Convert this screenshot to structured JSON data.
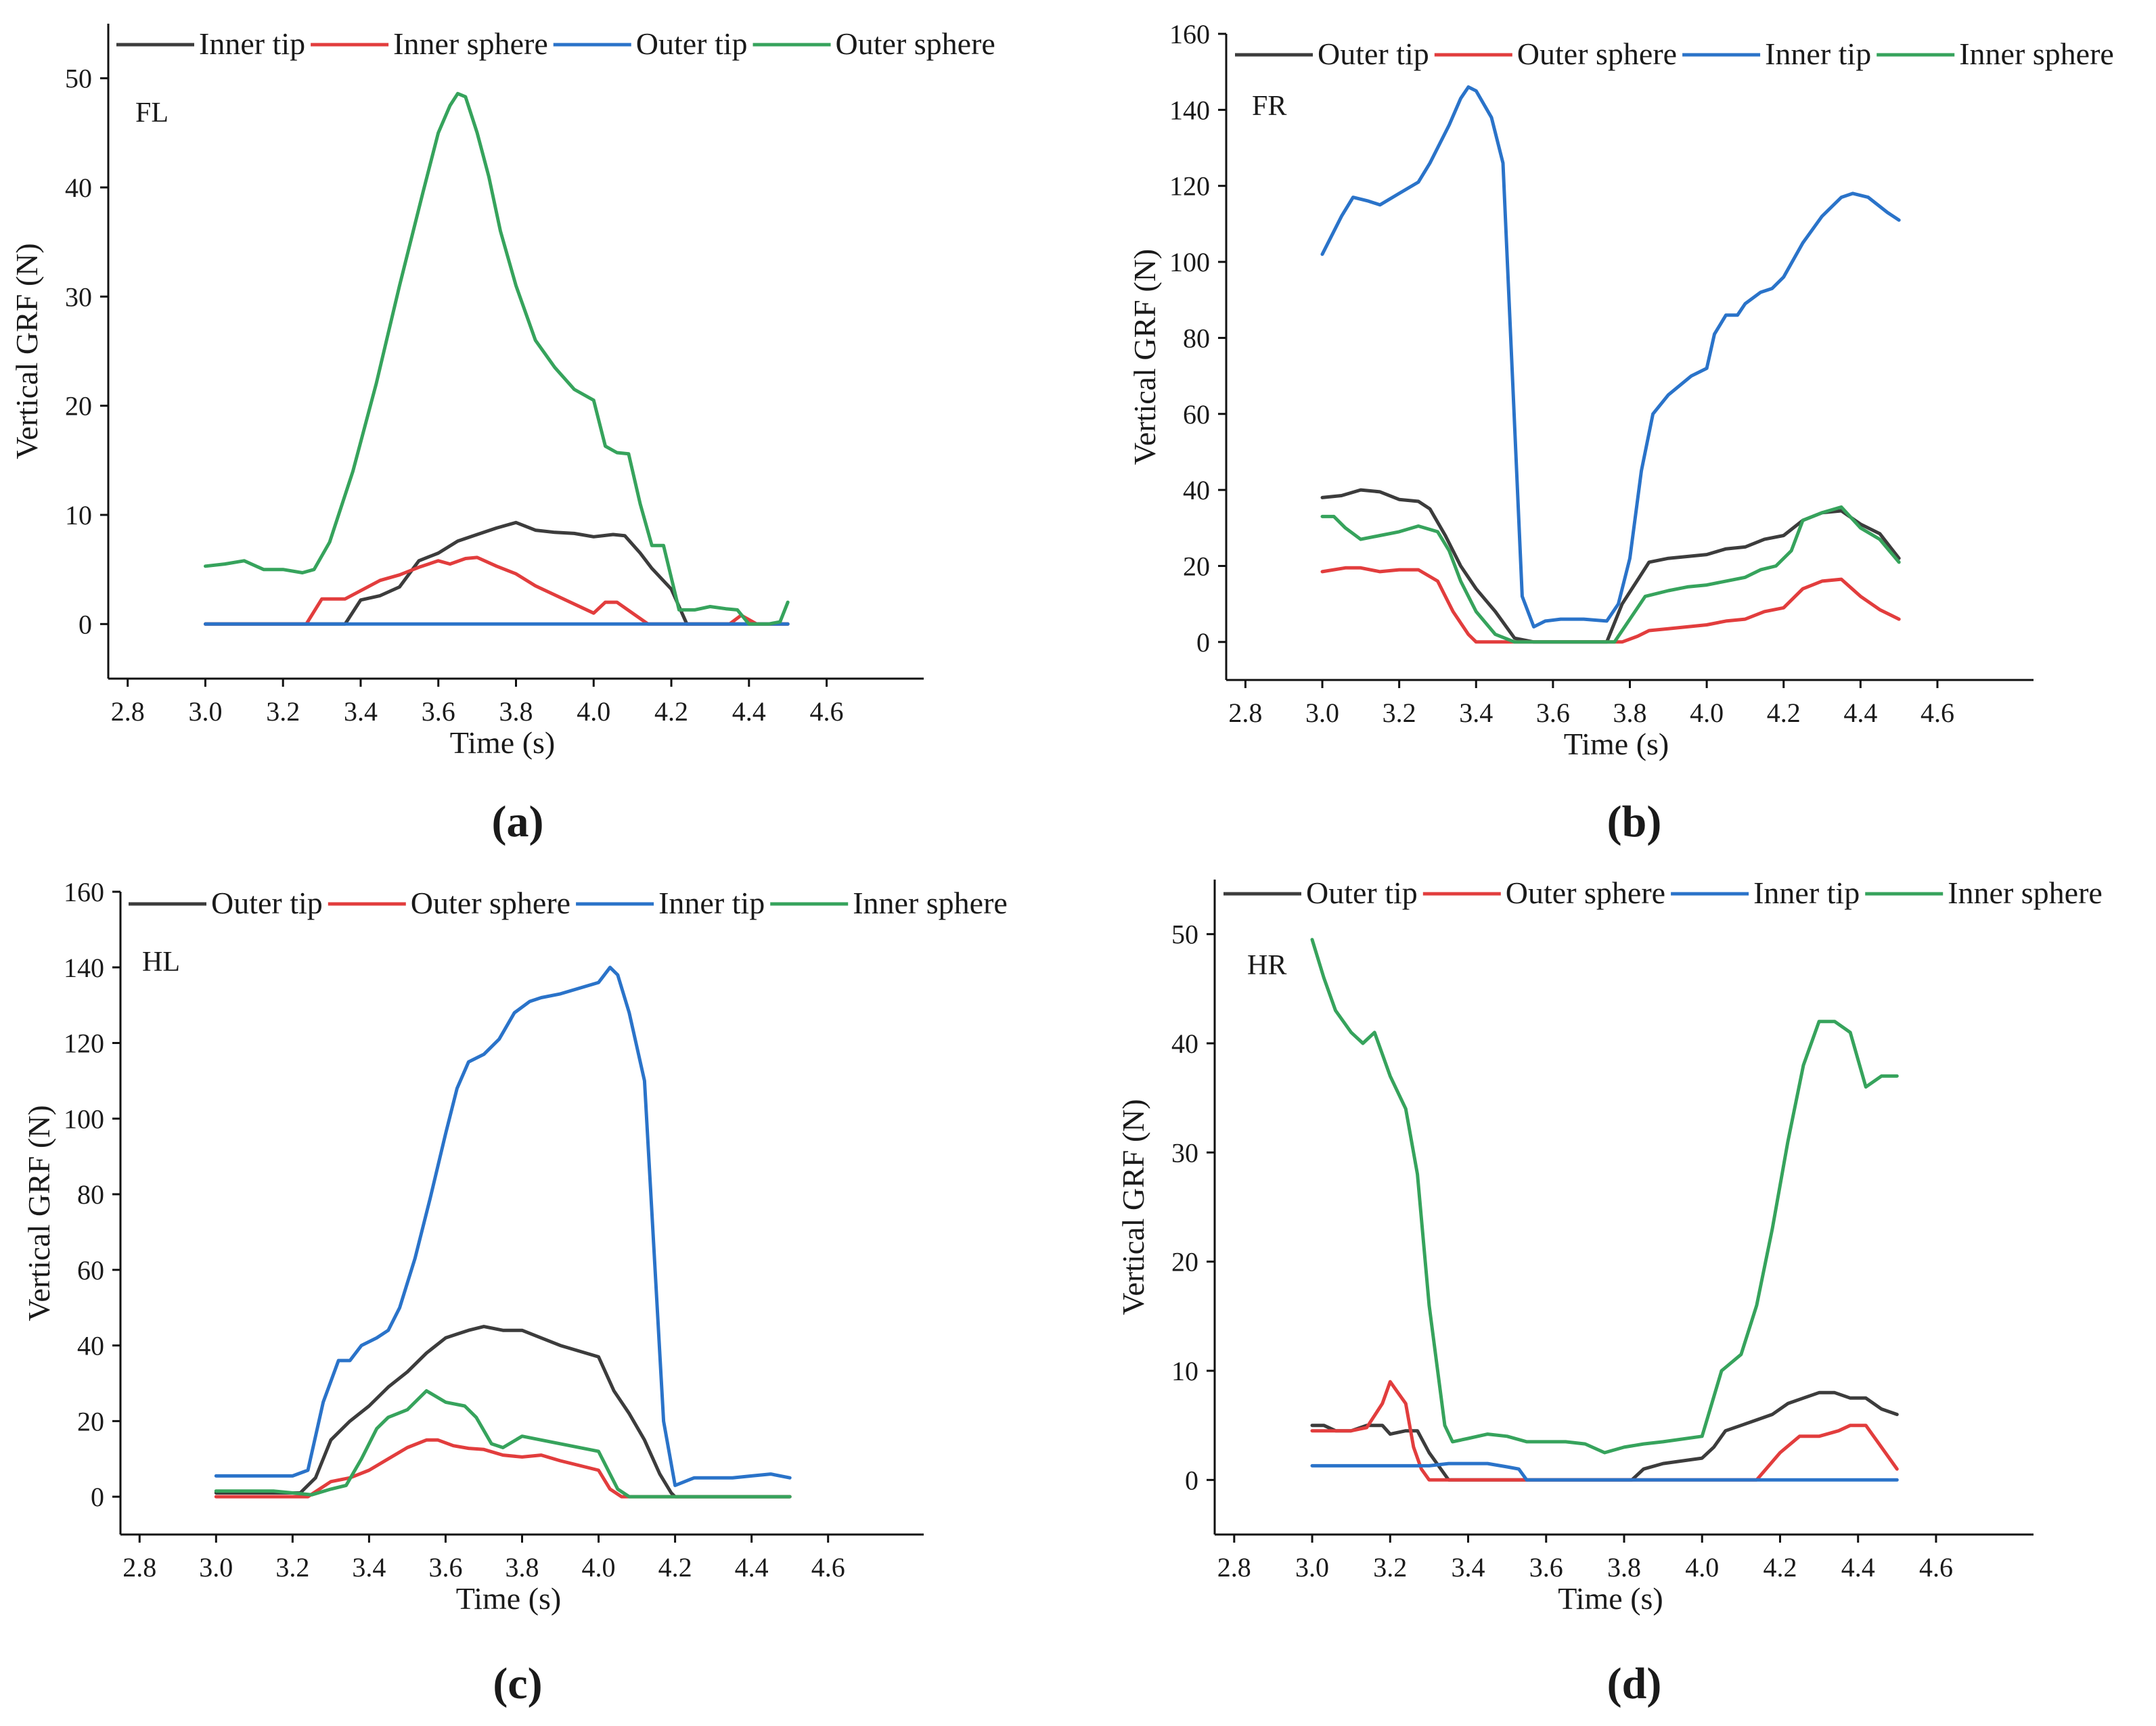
{
  "colors": {
    "gray": "#3c3c3c",
    "red": "#e23d3d",
    "blue": "#2a73c9",
    "green": "#36a35c",
    "axis": "#111111"
  },
  "chart_data": [
    {
      "id": "a",
      "type": "line",
      "caption": "(a)",
      "panel_label": "FL",
      "xlabel": "Time (s)",
      "ylabel": "Vertical GRF (N)",
      "xlim": [
        2.75,
        4.85
      ],
      "ylim": [
        -5,
        55
      ],
      "xticks": [
        2.8,
        3.0,
        3.2,
        3.4,
        3.6,
        3.8,
        4.0,
        4.2,
        4.4,
        4.6
      ],
      "xtick_labels": [
        "2.8",
        "3.0",
        "3.2",
        "3.4",
        "3.6",
        "3.8",
        "4.0",
        "4.2",
        "4.4",
        "4.6"
      ],
      "yticks": [
        0,
        10,
        20,
        30,
        40,
        50
      ],
      "ytick_labels": [
        "0",
        "10",
        "20",
        "30",
        "40",
        "50"
      ],
      "legend_position": "top",
      "series": [
        {
          "name": "Inner tip",
          "color": "gray",
          "x": [
            3.0,
            3.36,
            3.4,
            3.45,
            3.5,
            3.55,
            3.6,
            3.65,
            3.7,
            3.75,
            3.8,
            3.85,
            3.9,
            3.95,
            4.0,
            4.05,
            4.08,
            4.12,
            4.15,
            4.2,
            4.24,
            4.5
          ],
          "y": [
            0,
            0,
            2.2,
            2.6,
            3.4,
            5.8,
            6.5,
            7.6,
            8.2,
            8.8,
            9.3,
            8.6,
            8.4,
            8.3,
            8.0,
            8.2,
            8.1,
            6.5,
            5.1,
            3.2,
            0,
            0
          ]
        },
        {
          "name": "Inner sphere",
          "color": "red",
          "x": [
            3.0,
            3.26,
            3.3,
            3.36,
            3.45,
            3.5,
            3.55,
            3.6,
            3.63,
            3.67,
            3.7,
            3.75,
            3.8,
            3.85,
            4.0,
            4.03,
            4.06,
            4.1,
            4.14,
            4.35,
            4.38,
            4.42,
            4.5
          ],
          "y": [
            0,
            0,
            2.3,
            2.3,
            4.0,
            4.5,
            5.2,
            5.8,
            5.5,
            6.0,
            6.1,
            5.3,
            4.6,
            3.5,
            1.0,
            2.0,
            2.0,
            1.0,
            0,
            0,
            0.8,
            0,
            0
          ]
        },
        {
          "name": "Outer tip",
          "color": "blue",
          "x": [
            3.0,
            4.5
          ],
          "y": [
            0,
            0
          ]
        },
        {
          "name": "Outer sphere",
          "color": "green",
          "x": [
            3.0,
            3.05,
            3.1,
            3.15,
            3.2,
            3.25,
            3.28,
            3.32,
            3.38,
            3.44,
            3.5,
            3.56,
            3.6,
            3.63,
            3.65,
            3.67,
            3.7,
            3.73,
            3.76,
            3.8,
            3.85,
            3.9,
            3.95,
            4.0,
            4.03,
            4.06,
            4.09,
            4.12,
            4.15,
            4.18,
            4.22,
            4.26,
            4.3,
            4.34,
            4.37,
            4.4,
            4.45,
            4.48,
            4.5
          ],
          "y": [
            5.3,
            5.5,
            5.8,
            5.0,
            5.0,
            4.7,
            5.0,
            7.5,
            14.0,
            22.0,
            31.0,
            39.5,
            45.0,
            47.5,
            48.6,
            48.3,
            45.0,
            41.0,
            36.0,
            31.0,
            26.0,
            23.5,
            21.5,
            20.5,
            16.3,
            15.7,
            15.6,
            11.0,
            7.2,
            7.2,
            1.3,
            1.3,
            1.6,
            1.4,
            1.3,
            0,
            0,
            0.2,
            2.0
          ]
        }
      ]
    },
    {
      "id": "b",
      "type": "line",
      "caption": "(b)",
      "panel_label": "FR",
      "xlabel": "Time (s)",
      "ylabel": "Vertical GRF (N)",
      "xlim": [
        2.75,
        4.85
      ],
      "ylim": [
        -10,
        160
      ],
      "xticks": [
        2.8,
        3.0,
        3.2,
        3.4,
        3.6,
        3.8,
        4.0,
        4.2,
        4.4,
        4.6
      ],
      "xtick_labels": [
        "2.8",
        "3.0",
        "3.2",
        "3.4",
        "3.6",
        "3.8",
        "4.0",
        "4.2",
        "4.4",
        "4.6"
      ],
      "yticks": [
        0,
        20,
        40,
        60,
        80,
        100,
        120,
        140,
        160
      ],
      "ytick_labels": [
        "0",
        "20",
        "40",
        "60",
        "80",
        "100",
        "120",
        "140",
        "160"
      ],
      "legend_position": "top",
      "series": [
        {
          "name": "Outer tip",
          "color": "gray",
          "x": [
            3.0,
            3.05,
            3.1,
            3.15,
            3.2,
            3.25,
            3.28,
            3.32,
            3.36,
            3.4,
            3.45,
            3.5,
            3.55,
            3.74,
            3.78,
            3.85,
            3.9,
            4.0,
            4.05,
            4.1,
            4.15,
            4.2,
            4.25,
            4.3,
            4.35,
            4.4,
            4.45,
            4.5
          ],
          "y": [
            38,
            38.5,
            40,
            39.5,
            37.5,
            37,
            35,
            28,
            20,
            14,
            8,
            1,
            0,
            0,
            10,
            21,
            22,
            23,
            24.5,
            25,
            27,
            28,
            32,
            34,
            34.5,
            31,
            28.5,
            22
          ]
        },
        {
          "name": "Outer sphere",
          "color": "red",
          "x": [
            3.0,
            3.06,
            3.1,
            3.15,
            3.2,
            3.25,
            3.3,
            3.34,
            3.38,
            3.4,
            3.45,
            3.78,
            3.82,
            3.85,
            3.9,
            4.0,
            4.05,
            4.1,
            4.15,
            4.2,
            4.25,
            4.3,
            4.35,
            4.4,
            4.45,
            4.5
          ],
          "y": [
            18.5,
            19.5,
            19.5,
            18.5,
            19,
            19,
            16,
            8,
            2,
            0,
            0,
            0,
            1.5,
            3,
            3.5,
            4.5,
            5.5,
            6,
            8,
            9,
            14,
            16,
            16.5,
            12,
            8.5,
            6
          ]
        },
        {
          "name": "Inner tip",
          "color": "blue",
          "x": [
            3.0,
            3.05,
            3.08,
            3.12,
            3.15,
            3.2,
            3.25,
            3.28,
            3.33,
            3.36,
            3.38,
            3.4,
            3.44,
            3.47,
            3.52,
            3.55,
            3.58,
            3.62,
            3.68,
            3.74,
            3.77,
            3.8,
            3.83,
            3.86,
            3.9,
            3.96,
            4.0,
            4.02,
            4.05,
            4.08,
            4.1,
            4.14,
            4.17,
            4.2,
            4.25,
            4.3,
            4.35,
            4.38,
            4.42,
            4.47,
            4.5
          ],
          "y": [
            102,
            112,
            117,
            116,
            115,
            118,
            121,
            126,
            136,
            143,
            146,
            145,
            138,
            126,
            12,
            4,
            5.5,
            6,
            6,
            5.5,
            10,
            22,
            45,
            60,
            65,
            70,
            72,
            81,
            86,
            86,
            89,
            92,
            93,
            96,
            105,
            112,
            117,
            118,
            117,
            113,
            111
          ]
        },
        {
          "name": "Inner sphere",
          "color": "green",
          "x": [
            3.0,
            3.03,
            3.06,
            3.1,
            3.15,
            3.2,
            3.25,
            3.3,
            3.33,
            3.36,
            3.4,
            3.45,
            3.5,
            3.76,
            3.8,
            3.84,
            3.9,
            3.95,
            4.0,
            4.05,
            4.1,
            4.14,
            4.18,
            4.22,
            4.25,
            4.3,
            4.35,
            4.4,
            4.45,
            4.5
          ],
          "y": [
            33,
            33,
            30,
            27,
            28,
            29,
            30.5,
            29,
            24,
            16,
            8,
            2,
            0,
            0,
            6,
            12,
            13.5,
            14.5,
            15,
            16,
            17,
            19,
            20,
            24,
            32,
            34,
            35.5,
            30,
            27,
            21
          ]
        }
      ]
    },
    {
      "id": "c",
      "type": "line",
      "caption": "(c)",
      "panel_label": "HL",
      "xlabel": "Time (s)",
      "ylabel": "Vertical GRF (N)",
      "xlim": [
        2.75,
        4.85
      ],
      "ylim": [
        -10,
        160
      ],
      "xticks": [
        2.8,
        3.0,
        3.2,
        3.4,
        3.6,
        3.8,
        4.0,
        4.2,
        4.4,
        4.6
      ],
      "xtick_labels": [
        "2.8",
        "3.0",
        "3.2",
        "3.4",
        "3.6",
        "3.8",
        "4.0",
        "4.2",
        "4.4",
        "4.6"
      ],
      "yticks": [
        0,
        20,
        40,
        60,
        80,
        100,
        120,
        140,
        160
      ],
      "ytick_labels": [
        "0",
        "20",
        "40",
        "60",
        "80",
        "100",
        "120",
        "140",
        "160"
      ],
      "legend_position": "top",
      "series": [
        {
          "name": "Outer tip",
          "color": "gray",
          "x": [
            3.0,
            3.22,
            3.26,
            3.3,
            3.35,
            3.4,
            3.45,
            3.5,
            3.55,
            3.6,
            3.63,
            3.66,
            3.7,
            3.75,
            3.8,
            3.85,
            3.9,
            4.0,
            4.04,
            4.08,
            4.12,
            4.16,
            4.19,
            4.2,
            4.5
          ],
          "y": [
            1,
            1,
            5,
            15,
            20,
            24,
            29,
            33,
            38,
            42,
            43,
            44,
            45,
            44,
            44,
            42,
            40,
            37,
            28,
            22,
            15,
            6,
            1,
            0,
            0
          ]
        },
        {
          "name": "Outer sphere",
          "color": "red",
          "x": [
            3.0,
            3.24,
            3.3,
            3.35,
            3.4,
            3.45,
            3.5,
            3.55,
            3.58,
            3.62,
            3.66,
            3.7,
            3.75,
            3.8,
            3.85,
            3.9,
            4.0,
            4.03,
            4.06,
            4.5
          ],
          "y": [
            0,
            0,
            4,
            5,
            7,
            10,
            13,
            15,
            15,
            13.5,
            12.8,
            12.5,
            11,
            10.5,
            11,
            9.5,
            7,
            2,
            0,
            0
          ]
        },
        {
          "name": "Inner tip",
          "color": "blue",
          "x": [
            3.0,
            3.05,
            3.1,
            3.15,
            3.2,
            3.24,
            3.28,
            3.32,
            3.35,
            3.38,
            3.42,
            3.45,
            3.48,
            3.52,
            3.56,
            3.6,
            3.63,
            3.66,
            3.7,
            3.74,
            3.78,
            3.82,
            3.85,
            3.9,
            4.0,
            4.03,
            4.05,
            4.08,
            4.12,
            4.17,
            4.2,
            4.25,
            4.3,
            4.35,
            4.4,
            4.45,
            4.5
          ],
          "y": [
            5.5,
            5.5,
            5.5,
            5.5,
            5.5,
            7,
            25,
            36,
            36,
            40,
            42,
            44,
            50,
            63,
            79,
            96,
            108,
            115,
            117,
            121,
            128,
            131,
            132,
            133,
            136,
            140,
            138,
            128,
            110,
            20,
            3,
            5,
            5,
            5,
            5.5,
            6,
            5
          ]
        },
        {
          "name": "Inner sphere",
          "color": "green",
          "x": [
            3.0,
            3.05,
            3.1,
            3.15,
            3.2,
            3.25,
            3.3,
            3.34,
            3.38,
            3.42,
            3.45,
            3.5,
            3.55,
            3.6,
            3.65,
            3.68,
            3.72,
            3.75,
            3.8,
            3.85,
            4.0,
            4.05,
            4.08,
            4.5
          ],
          "y": [
            1.5,
            1.5,
            1.5,
            1.5,
            1,
            0.5,
            2,
            3,
            10,
            18,
            21,
            23,
            28,
            25,
            24,
            21,
            14,
            13,
            16,
            15,
            12,
            2,
            0,
            0
          ]
        }
      ]
    },
    {
      "id": "d",
      "type": "line",
      "caption": "(d)",
      "panel_label": "HR",
      "xlabel": "Time (s)",
      "ylabel": "Vertical GRF (N)",
      "xlim": [
        2.75,
        4.85
      ],
      "ylim": [
        -5,
        55
      ],
      "xticks": [
        2.8,
        3.0,
        3.2,
        3.4,
        3.6,
        3.8,
        4.0,
        4.2,
        4.4,
        4.6
      ],
      "xtick_labels": [
        "2.8",
        "3.0",
        "3.2",
        "3.4",
        "3.6",
        "3.8",
        "4.0",
        "4.2",
        "4.4",
        "4.6"
      ],
      "yticks": [
        0,
        10,
        20,
        30,
        40,
        50
      ],
      "ytick_labels": [
        "0",
        "10",
        "20",
        "30",
        "40",
        "50"
      ],
      "legend_position": "top",
      "series": [
        {
          "name": "Outer tip",
          "color": "gray",
          "x": [
            3.0,
            3.03,
            3.06,
            3.1,
            3.14,
            3.18,
            3.2,
            3.24,
            3.27,
            3.3,
            3.33,
            3.35,
            3.82,
            3.85,
            3.9,
            4.0,
            4.03,
            4.06,
            4.1,
            4.14,
            4.18,
            4.22,
            4.26,
            4.3,
            4.34,
            4.38,
            4.42,
            4.46,
            4.5
          ],
          "y": [
            5,
            5,
            4.5,
            4.5,
            5,
            5,
            4.2,
            4.5,
            4.5,
            2.5,
            1,
            0,
            0,
            1,
            1.5,
            2,
            3,
            4.5,
            5,
            5.5,
            6,
            7,
            7.5,
            8,
            8,
            7.5,
            7.5,
            6.5,
            6
          ]
        },
        {
          "name": "Outer sphere",
          "color": "red",
          "x": [
            3.0,
            3.05,
            3.1,
            3.14,
            3.18,
            3.2,
            3.22,
            3.24,
            3.26,
            3.28,
            3.3,
            3.55,
            4.14,
            4.2,
            4.25,
            4.3,
            4.35,
            4.38,
            4.42,
            4.46,
            4.5
          ],
          "y": [
            4.5,
            4.5,
            4.5,
            4.8,
            7,
            9,
            8,
            7,
            3,
            1,
            0,
            0,
            0,
            2.5,
            4,
            4,
            4.5,
            5,
            5,
            3,
            1
          ]
        },
        {
          "name": "Inner tip",
          "color": "blue",
          "x": [
            3.0,
            3.3,
            3.35,
            3.45,
            3.5,
            3.53,
            3.55,
            4.5
          ],
          "y": [
            1.3,
            1.3,
            1.5,
            1.5,
            1.2,
            1,
            0,
            0
          ]
        },
        {
          "name": "Inner sphere",
          "color": "green",
          "x": [
            3.0,
            3.03,
            3.06,
            3.1,
            3.13,
            3.16,
            3.2,
            3.24,
            3.27,
            3.3,
            3.34,
            3.36,
            3.4,
            3.45,
            3.5,
            3.55,
            3.6,
            3.65,
            3.7,
            3.75,
            3.8,
            3.85,
            3.9,
            4.0,
            4.05,
            4.1,
            4.14,
            4.18,
            4.22,
            4.26,
            4.3,
            4.34,
            4.38,
            4.42,
            4.46,
            4.5
          ],
          "y": [
            49.5,
            46,
            43,
            41,
            40,
            41,
            37,
            34,
            28,
            16,
            5,
            3.5,
            3.8,
            4.2,
            4,
            3.5,
            3.5,
            3.5,
            3.3,
            2.5,
            3,
            3.3,
            3.5,
            4,
            10,
            11.5,
            16,
            23,
            31,
            38,
            42,
            42,
            41,
            36,
            37,
            37
          ]
        }
      ]
    }
  ]
}
